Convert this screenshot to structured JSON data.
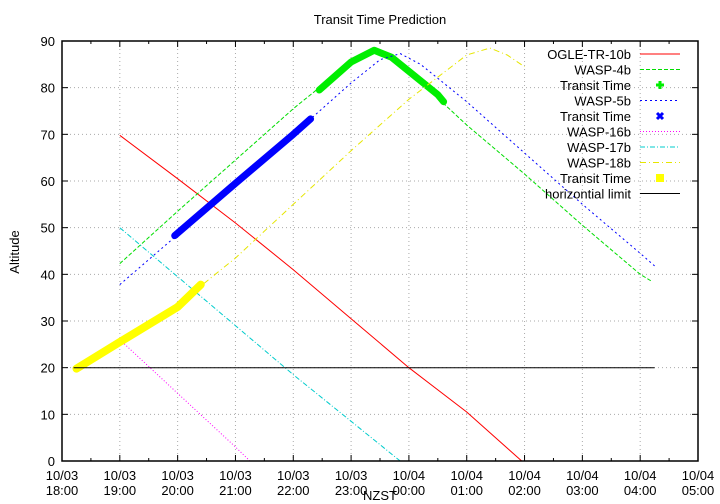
{
  "chart_data": {
    "type": "line",
    "title": "Transit Time Prediction",
    "xlabel": "NZST",
    "ylabel": "Altitude",
    "ylim": [
      0,
      90
    ],
    "yticks": [
      0,
      10,
      20,
      30,
      40,
      50,
      60,
      70,
      80,
      90
    ],
    "xlim_hours": [
      18,
      29
    ],
    "xticks": [
      {
        "h": 18,
        "date": "10/03",
        "time": "18:00"
      },
      {
        "h": 19,
        "date": "10/03",
        "time": "19:00"
      },
      {
        "h": 20,
        "date": "10/03",
        "time": "20:00"
      },
      {
        "h": 21,
        "date": "10/03",
        "time": "21:00"
      },
      {
        "h": 22,
        "date": "10/03",
        "time": "22:00"
      },
      {
        "h": 23,
        "date": "10/03",
        "time": "23:00"
      },
      {
        "h": 24,
        "date": "10/04",
        "time": "00:00"
      },
      {
        "h": 25,
        "date": "10/04",
        "time": "01:00"
      },
      {
        "h": 26,
        "date": "10/04",
        "time": "02:00"
      },
      {
        "h": 27,
        "date": "10/04",
        "time": "03:00"
      },
      {
        "h": 28,
        "date": "10/04",
        "time": "04:00"
      },
      {
        "h": 29,
        "date": "10/04",
        "time": "05:00"
      }
    ],
    "grid": true,
    "legend_position": "top-right",
    "series": [
      {
        "name": "OGLE-TR-10b",
        "kind": "line",
        "color": "#ff0000",
        "dash": "",
        "points": [
          [
            19.0,
            69.8
          ],
          [
            20.0,
            60.5
          ],
          [
            21.0,
            51.0
          ],
          [
            22.0,
            41.0
          ],
          [
            23.0,
            30.5
          ],
          [
            24.0,
            20.0
          ],
          [
            25.0,
            10.5
          ],
          [
            25.95,
            0.0
          ]
        ]
      },
      {
        "name": "WASP-4b",
        "kind": "line",
        "color": "#00dd00",
        "dash": "4,2",
        "points": [
          [
            19.0,
            42.3
          ],
          [
            20.0,
            53.5
          ],
          [
            21.0,
            64.5
          ],
          [
            22.0,
            75.5
          ],
          [
            22.5,
            80.5
          ],
          [
            23.0,
            85.5
          ],
          [
            23.4,
            88.0
          ],
          [
            23.7,
            86.5
          ],
          [
            24.0,
            83.5
          ],
          [
            25.0,
            72.0
          ],
          [
            26.0,
            61.5
          ],
          [
            27.0,
            50.5
          ],
          [
            28.0,
            40.0
          ],
          [
            28.2,
            38.5
          ]
        ]
      },
      {
        "name": "Transit Time",
        "kind": "band",
        "color": "#00ee00",
        "width": 7,
        "points": [
          [
            22.45,
            79.5
          ],
          [
            23.0,
            85.5
          ],
          [
            23.4,
            88.0
          ],
          [
            23.7,
            86.5
          ],
          [
            24.0,
            83.5
          ],
          [
            24.5,
            78.5
          ],
          [
            24.6,
            77.0
          ]
        ]
      },
      {
        "name": "WASP-5b",
        "kind": "line",
        "color": "#0000ff",
        "dash": "2,3",
        "points": [
          [
            19.0,
            37.8
          ],
          [
            20.0,
            48.5
          ],
          [
            21.0,
            59.5
          ],
          [
            22.0,
            70.0
          ],
          [
            23.0,
            81.0
          ],
          [
            23.5,
            86.0
          ],
          [
            23.85,
            87.3
          ],
          [
            24.2,
            85.0
          ],
          [
            25.0,
            77.0
          ],
          [
            26.0,
            66.0
          ],
          [
            27.0,
            55.0
          ],
          [
            28.0,
            44.5
          ],
          [
            28.25,
            41.8
          ]
        ]
      },
      {
        "name": "Transit Time",
        "kind": "band",
        "color": "#0000ff",
        "width": 7,
        "points": [
          [
            19.95,
            48.3
          ],
          [
            21.0,
            59.5
          ],
          [
            22.0,
            70.0
          ],
          [
            22.3,
            73.3
          ]
        ]
      },
      {
        "name": "WASP-16b",
        "kind": "line",
        "color": "#ff00ff",
        "dash": "1,2",
        "points": [
          [
            19.0,
            26.0
          ],
          [
            20.0,
            14.5
          ],
          [
            21.0,
            3.0
          ],
          [
            21.25,
            0.0
          ]
        ]
      },
      {
        "name": "WASP-17b",
        "kind": "line",
        "color": "#00cccc",
        "dash": "5,2,1,2",
        "points": [
          [
            19.0,
            50.0
          ],
          [
            20.0,
            39.5
          ],
          [
            21.0,
            29.0
          ],
          [
            22.0,
            18.5
          ],
          [
            23.0,
            8.5
          ],
          [
            23.85,
            0.0
          ]
        ]
      },
      {
        "name": "WASP-18b",
        "kind": "line",
        "color": "#e6e600",
        "dash": "6,3,1,3",
        "points": [
          [
            18.2,
            19.8
          ],
          [
            19.0,
            25.5
          ],
          [
            20.0,
            33.0
          ],
          [
            20.4,
            37.5
          ],
          [
            21.0,
            43.5
          ],
          [
            22.0,
            55.0
          ],
          [
            23.0,
            66.5
          ],
          [
            24.0,
            77.5
          ],
          [
            25.0,
            87.0
          ],
          [
            25.4,
            88.5
          ],
          [
            25.7,
            87.0
          ],
          [
            26.0,
            84.5
          ]
        ]
      },
      {
        "name": "Transit Time",
        "kind": "band",
        "color": "#ffff00",
        "width": 8,
        "points": [
          [
            18.25,
            19.8
          ],
          [
            19.0,
            25.5
          ],
          [
            20.0,
            33.0
          ],
          [
            20.4,
            37.8
          ]
        ]
      },
      {
        "name": "horizontial limit",
        "kind": "line",
        "color": "#000000",
        "dash": "",
        "points": [
          [
            18.2,
            20.0
          ],
          [
            28.25,
            20.0
          ]
        ]
      }
    ],
    "legend": [
      {
        "label": "OGLE-TR-10b",
        "color": "#ff0000",
        "style": "line",
        "dash": ""
      },
      {
        "label": "WASP-4b",
        "color": "#00dd00",
        "style": "line",
        "dash": "4,2"
      },
      {
        "label": "Transit Time",
        "color": "#00ee00",
        "style": "plus"
      },
      {
        "label": "WASP-5b",
        "color": "#0000ff",
        "style": "line",
        "dash": "2,3"
      },
      {
        "label": "Transit Time",
        "color": "#0000ff",
        "style": "cross"
      },
      {
        "label": "WASP-16b",
        "color": "#ff00ff",
        "style": "line",
        "dash": "1,2"
      },
      {
        "label": "WASP-17b",
        "color": "#00cccc",
        "style": "line",
        "dash": "5,2,1,2"
      },
      {
        "label": "WASP-18b",
        "color": "#e6e600",
        "style": "line",
        "dash": "6,3,1,3"
      },
      {
        "label": "Transit Time",
        "color": "#ffff00",
        "style": "square"
      },
      {
        "label": "horizontial limit",
        "color": "#000000",
        "style": "line",
        "dash": ""
      }
    ]
  }
}
